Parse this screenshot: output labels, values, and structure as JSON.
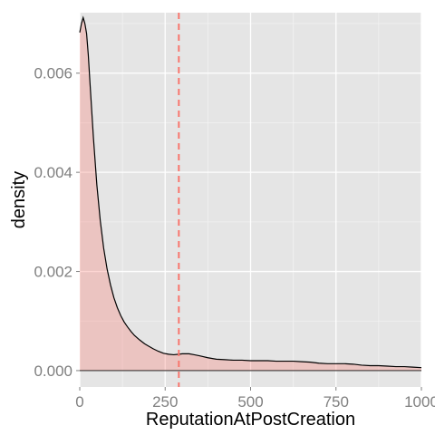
{
  "chart_data": {
    "type": "area",
    "title": "",
    "xlabel": "ReputationAtPostCreation",
    "ylabel": "density",
    "xlim": [
      0,
      1000
    ],
    "ylim": [
      -0.00033,
      0.00722
    ],
    "x_ticks": [
      0,
      250,
      500,
      750,
      1000
    ],
    "x_tick_labels": [
      "0",
      "250",
      "500",
      "750",
      "1000"
    ],
    "y_ticks": [
      0.0,
      0.002,
      0.004,
      0.006
    ],
    "y_tick_labels": [
      "0.000",
      "0.002",
      "0.004",
      "0.006"
    ],
    "grid": true,
    "legend": "none",
    "vline": {
      "x": 290,
      "style": "dashed",
      "color": "#f8766d"
    },
    "colors": {
      "panel_background": "#e5e5e5",
      "grid_major": "#ffffff",
      "grid_minor": "#f2f2f2",
      "fill": "#f8766d",
      "fill_opacity": 0.3,
      "line": "#000000"
    },
    "series": [
      {
        "x": [
          0,
          5,
          10,
          15,
          20,
          25,
          30,
          40,
          50,
          60,
          70,
          80,
          90,
          100,
          110,
          120,
          130,
          140,
          150,
          160,
          175,
          190,
          200,
          215,
          230,
          245,
          260,
          275,
          290,
          300,
          310,
          320,
          335,
          350,
          375,
          400,
          425,
          450,
          475,
          500,
          525,
          550,
          575,
          600,
          625,
          650,
          675,
          700,
          725,
          750,
          775,
          800,
          825,
          850,
          875,
          900,
          925,
          950,
          975,
          1000
        ],
        "y": [
          0.00682,
          0.007,
          0.00712,
          0.007,
          0.0068,
          0.00637,
          0.0058,
          0.0047,
          0.00375,
          0.00303,
          0.00247,
          0.00205,
          0.00173,
          0.00147,
          0.00127,
          0.00111,
          0.00098,
          0.00088,
          0.00079,
          0.00071,
          0.00062,
          0.00054,
          0.0005,
          0.00044,
          0.00039,
          0.00035,
          0.00033,
          0.00032,
          0.00033,
          0.00034,
          0.00034,
          0.00034,
          0.00032,
          0.0003,
          0.00026,
          0.00023,
          0.00022,
          0.00021,
          0.00021,
          0.0002,
          0.0002,
          0.0002,
          0.00019,
          0.00019,
          0.00019,
          0.00018,
          0.00017,
          0.00015,
          0.00014,
          0.00014,
          0.00014,
          0.00013,
          0.00011,
          0.0001,
          0.0001,
          9e-05,
          8e-05,
          8e-05,
          7e-05,
          6e-05
        ]
      }
    ]
  }
}
